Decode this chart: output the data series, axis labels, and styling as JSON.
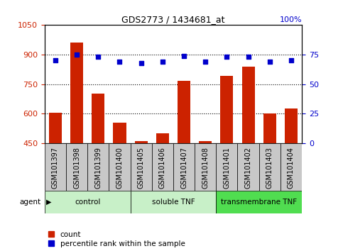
{
  "title": "GDS2773 / 1434681_at",
  "samples": [
    "GSM101397",
    "GSM101398",
    "GSM101399",
    "GSM101400",
    "GSM101405",
    "GSM101406",
    "GSM101407",
    "GSM101408",
    "GSM101401",
    "GSM101402",
    "GSM101403",
    "GSM101404"
  ],
  "counts": [
    605,
    960,
    700,
    555,
    460,
    500,
    765,
    460,
    790,
    840,
    600,
    625
  ],
  "percentile_ranks": [
    70,
    75,
    73,
    69,
    68,
    69,
    74,
    69,
    73,
    73,
    69,
    70
  ],
  "ylim_left": [
    450,
    1050
  ],
  "ylim_right": [
    0,
    100
  ],
  "yticks_left": [
    450,
    600,
    750,
    900,
    1050
  ],
  "yticks_right": [
    0,
    25,
    50,
    75
  ],
  "ytick_right_top_label": "100%",
  "grid_lines": [
    600,
    750,
    900
  ],
  "groups": [
    {
      "label": "control",
      "start": 0,
      "end": 4,
      "color": "#c8f0c8"
    },
    {
      "label": "soluble TNF",
      "start": 4,
      "end": 8,
      "color": "#c8f0c8"
    },
    {
      "label": "transmembrane TNF",
      "start": 8,
      "end": 12,
      "color": "#50dd50"
    }
  ],
  "bar_color": "#cc2200",
  "scatter_color": "#0000cc",
  "tick_color_left": "#cc2200",
  "tick_color_right": "#0000cc",
  "grid_color": "#000000",
  "bg_color": "#ffffff",
  "sample_box_color": "#c8c8c8",
  "legend_count_label": "count",
  "legend_pct_label": "percentile rank within the sample",
  "agent_label": "agent",
  "bar_width": 0.6,
  "title_fontsize": 9,
  "tick_fontsize": 8,
  "label_fontsize": 7,
  "legend_fontsize": 7.5
}
